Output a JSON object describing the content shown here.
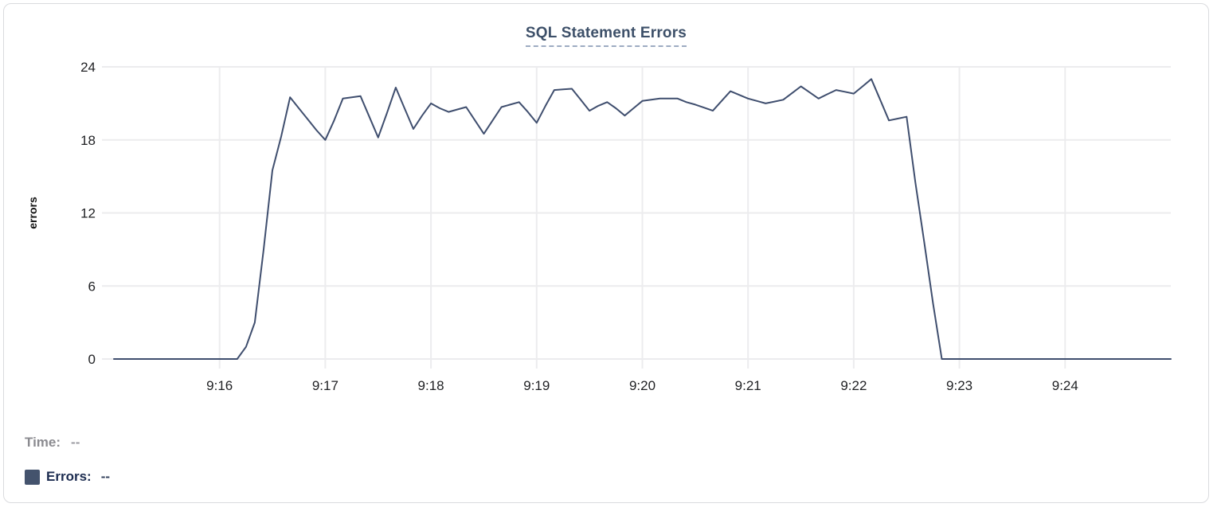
{
  "chart": {
    "title": "SQL Statement Errors"
  },
  "legend": {
    "time_label": "Time:",
    "time_value": "--",
    "errors_label": "Errors:",
    "errors_value": "--",
    "swatch_color": "#44536d"
  },
  "colors": {
    "line": "#3f4e6e",
    "grid": "#ececee",
    "tick_stub": "#e6e7e9",
    "tick_text": "#1f2023",
    "axis_label_text": "#111111",
    "title_text": "#3d5069",
    "card_border": "#dadbde"
  },
  "chart_data": {
    "type": "line",
    "title": "SQL Statement Errors",
    "xlabel": "",
    "ylabel": "errors",
    "ylim": [
      0,
      24
    ],
    "yticks": [
      0,
      6,
      12,
      18,
      24
    ],
    "grid": true,
    "legend_position": "bottom-left",
    "x_axis": {
      "start_time": "9:15:00",
      "end_time": "9:25:00",
      "xlim_sec": [
        0,
        600
      ],
      "interval_sec": 5,
      "ticks": [
        {
          "label": "9:16",
          "sec": 60
        },
        {
          "label": "9:17",
          "sec": 120
        },
        {
          "label": "9:18",
          "sec": 180
        },
        {
          "label": "9:19",
          "sec": 240
        },
        {
          "label": "9:20",
          "sec": 300
        },
        {
          "label": "9:21",
          "sec": 360
        },
        {
          "label": "9:22",
          "sec": 420
        },
        {
          "label": "9:23",
          "sec": 480
        },
        {
          "label": "9:24",
          "sec": 540
        }
      ]
    },
    "series": [
      {
        "name": "Errors",
        "color": "#3f4e6e",
        "start_sec": 0,
        "step_sec": 5,
        "values": [
          0,
          0,
          0,
          0,
          0,
          0,
          0,
          0,
          0,
          0,
          0,
          0,
          0,
          0,
          0,
          1,
          3,
          9,
          15.5,
          18.3,
          21.5,
          20.6,
          19.7,
          18.8,
          18,
          19.6,
          21.4,
          21.5,
          21.6,
          19.9,
          18.2,
          20.2,
          22.3,
          20.6,
          18.9,
          20,
          21,
          20.6,
          20.3,
          20.5,
          20.7,
          19.6,
          18.5,
          19.6,
          20.7,
          20.9,
          21.1,
          20.3,
          19.4,
          20.8,
          22.1,
          22.15,
          22.2,
          21.3,
          20.4,
          20.8,
          21.1,
          20.6,
          20,
          20.6,
          21.2,
          21.3,
          21.4,
          21.4,
          21.4,
          21.1,
          20.9,
          20.65,
          20.4,
          21.2,
          22,
          21.7,
          21.4,
          21.2,
          21,
          21.15,
          21.3,
          21.85,
          22.4,
          21.9,
          21.4,
          21.75,
          22.1,
          21.95,
          21.8,
          22.4,
          23,
          21.3,
          19.6,
          19.75,
          19.9,
          14.5,
          9.6,
          4.6,
          0,
          0,
          0,
          0,
          0,
          0,
          0,
          0,
          0,
          0,
          0,
          0,
          0,
          0,
          0,
          0,
          0,
          0,
          0,
          0,
          0,
          0,
          0,
          0,
          0,
          0,
          0
        ]
      }
    ]
  }
}
